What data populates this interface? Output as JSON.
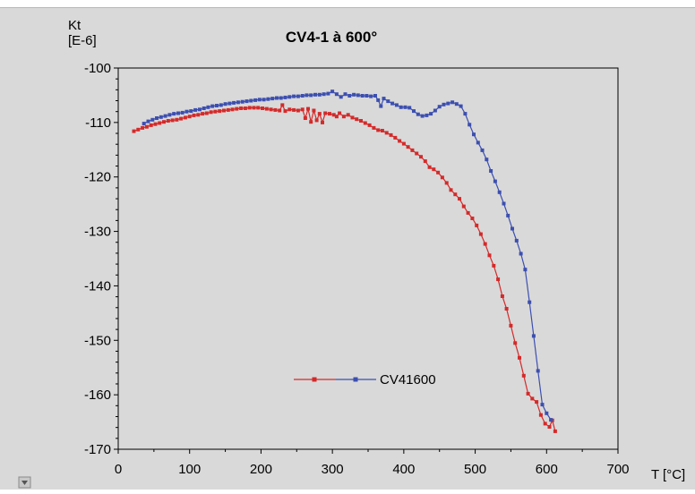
{
  "chart_data": {
    "type": "line",
    "title": "CV4-1 à 600°",
    "ylabel_lines": [
      "Kt",
      "[E-6]"
    ],
    "xlabel": "T [°C]",
    "xlim": [
      0,
      700
    ],
    "ylim": [
      -170,
      -100
    ],
    "x_ticks": [
      0,
      100,
      200,
      300,
      400,
      500,
      600,
      700
    ],
    "y_ticks": [
      -100,
      -110,
      -120,
      -130,
      -140,
      -150,
      -160,
      -170
    ],
    "legend": {
      "position": "lower-middle",
      "label": "CV41600"
    },
    "colors": {
      "heating": "#d42a2a",
      "cooling": "#3c4fb0",
      "background": "#d9d9d9"
    },
    "series": [
      {
        "x": [
          22,
          28,
          34,
          40,
          46,
          52,
          58,
          64,
          70,
          76,
          82,
          88,
          94,
          100,
          106,
          112,
          118,
          124,
          130,
          136,
          142,
          148,
          154,
          160,
          166,
          172,
          178,
          184,
          190,
          196,
          202,
          208,
          214,
          220,
          226,
          230,
          234,
          240,
          246,
          252,
          258,
          262,
          266,
          270,
          274,
          278,
          282,
          286,
          290,
          296,
          302,
          306,
          310,
          316,
          322,
          328,
          334,
          340,
          346,
          352,
          358,
          364,
          370,
          376,
          382,
          388,
          394,
          400,
          406,
          412,
          418,
          424,
          430,
          436,
          442,
          448,
          454,
          460,
          466,
          472,
          478,
          484,
          490,
          496,
          502,
          508,
          514,
          520,
          526,
          532,
          538,
          544,
          550,
          556,
          562,
          568,
          574,
          580,
          586,
          592,
          598,
          604,
          608,
          612
        ],
        "y": [
          -111.6,
          -111.3,
          -111,
          -110.8,
          -110.5,
          -110.3,
          -110.1,
          -109.9,
          -109.7,
          -109.6,
          -109.5,
          -109.3,
          -109.1,
          -108.9,
          -108.7,
          -108.6,
          -108.4,
          -108.3,
          -108.1,
          -108,
          -107.9,
          -107.8,
          -107.7,
          -107.6,
          -107.5,
          -107.4,
          -107.4,
          -107.3,
          -107.3,
          -107.3,
          -107.4,
          -107.5,
          -107.6,
          -107.7,
          -107.8,
          -106.8,
          -107.9,
          -107.6,
          -107.7,
          -107.8,
          -107.6,
          -109.2,
          -107.5,
          -109.9,
          -107.8,
          -109.6,
          -108.4,
          -110,
          -108.3,
          -108.4,
          -108.6,
          -108.9,
          -108.3,
          -108.9,
          -108.6,
          -109.1,
          -109.4,
          -109.7,
          -110.1,
          -110.5,
          -111,
          -111.4,
          -111.5,
          -111.9,
          -112.3,
          -112.8,
          -113.4,
          -113.9,
          -114.5,
          -115.1,
          -115.7,
          -116.3,
          -117.1,
          -118.2,
          -118.6,
          -119.2,
          -120.1,
          -121.1,
          -122.4,
          -123.2,
          -124,
          -125.4,
          -126.6,
          -127.6,
          -128.9,
          -130.5,
          -132.3,
          -134.4,
          -136.3,
          -138.8,
          -141.9,
          -144.2,
          -147.3,
          -150.5,
          -153.2,
          -156.5,
          -159.8,
          -160.7,
          -161.3,
          -163.7,
          -165.3,
          -165.9,
          -164.7,
          -166.7
        ]
      },
      {
        "x": [
          36,
          42,
          48,
          54,
          60,
          66,
          72,
          78,
          84,
          90,
          96,
          102,
          108,
          114,
          120,
          126,
          132,
          138,
          144,
          150,
          156,
          162,
          168,
          174,
          180,
          186,
          192,
          198,
          204,
          210,
          216,
          222,
          228,
          234,
          240,
          246,
          252,
          258,
          264,
          270,
          276,
          282,
          288,
          294,
          300,
          306,
          312,
          318,
          324,
          330,
          336,
          342,
          348,
          354,
          360,
          364,
          368,
          372,
          378,
          384,
          390,
          396,
          402,
          408,
          414,
          420,
          426,
          432,
          438,
          444,
          450,
          456,
          462,
          468,
          474,
          480,
          486,
          492,
          498,
          504,
          510,
          516,
          522,
          528,
          534,
          540,
          546,
          552,
          558,
          564,
          570,
          576,
          582,
          588,
          594,
          600,
          606
        ],
        "y": [
          -110.2,
          -109.8,
          -109.5,
          -109.2,
          -109,
          -108.8,
          -108.6,
          -108.4,
          -108.3,
          -108.2,
          -108,
          -107.9,
          -107.7,
          -107.6,
          -107.4,
          -107.2,
          -107,
          -106.9,
          -106.8,
          -106.6,
          -106.5,
          -106.4,
          -106.3,
          -106.2,
          -106.1,
          -106,
          -105.9,
          -105.8,
          -105.8,
          -105.7,
          -105.6,
          -105.5,
          -105.5,
          -105.4,
          -105.3,
          -105.2,
          -105.2,
          -105.1,
          -105,
          -105,
          -104.9,
          -104.9,
          -104.8,
          -104.7,
          -104.3,
          -104.8,
          -105.3,
          -104.8,
          -105.1,
          -104.9,
          -105,
          -105.1,
          -105.1,
          -105.2,
          -105.1,
          -105.9,
          -107,
          -105.6,
          -106.1,
          -106.5,
          -106.8,
          -107.2,
          -107.2,
          -107.3,
          -107.9,
          -108.5,
          -108.8,
          -108.7,
          -108.4,
          -107.8,
          -107.1,
          -106.7,
          -106.5,
          -106.3,
          -106.6,
          -107,
          -108.4,
          -110.4,
          -112.2,
          -113.7,
          -115.1,
          -116.8,
          -118.9,
          -120.8,
          -122.8,
          -124.9,
          -127.1,
          -129.5,
          -131.7,
          -134.1,
          -137,
          -143,
          -149.2,
          -155.6,
          -161.8,
          -163.4,
          -164.6
        ]
      }
    ]
  }
}
